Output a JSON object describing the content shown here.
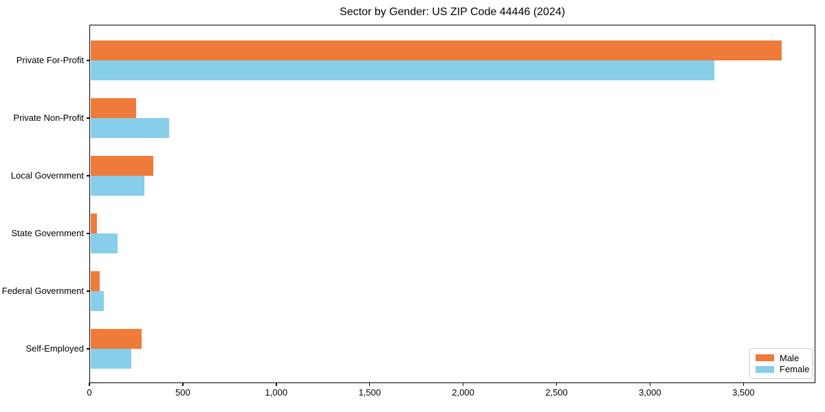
{
  "chart_data": {
    "type": "bar",
    "orientation": "horizontal",
    "title": "Sector by Gender: US ZIP Code 44446 (2024)",
    "xlabel": "",
    "ylabel": "",
    "categories": [
      "Private For-Profit",
      "Private Non-Profit",
      "Local Government",
      "State Government",
      "Federal Government",
      "Self-Employed"
    ],
    "series": [
      {
        "name": "Male",
        "color": "#EE7B39",
        "values": [
          3700,
          245,
          335,
          35,
          50,
          275
        ]
      },
      {
        "name": "Female",
        "color": "#87CEEB",
        "values": [
          3340,
          420,
          290,
          145,
          70,
          220
        ]
      }
    ],
    "xlim": [
      0,
      3885
    ],
    "x_ticks": [
      0,
      500,
      1000,
      1500,
      2000,
      2500,
      3000,
      3500
    ],
    "x_tick_labels": [
      "0",
      "500",
      "1,000",
      "1,500",
      "2,000",
      "2,500",
      "3,000",
      "3,500"
    ],
    "grid": false,
    "legend_position": "lower right",
    "colors": {
      "axis": "#000000",
      "legend_border": "#CCCCCC",
      "background": "#FFFFFF"
    }
  }
}
